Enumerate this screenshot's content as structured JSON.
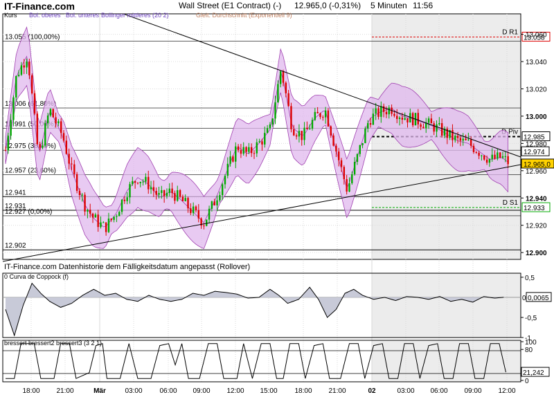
{
  "header": {
    "brand": "IT-Finance.com",
    "title": "Wall Street (E1 Contract) (-)",
    "quote": "12.965,0 (-0,31%)",
    "timeframe": "5 Minuten",
    "time": "11:56"
  },
  "colors": {
    "up": "#00aa00",
    "down": "#dd0000",
    "band_fill": "#e0b8ee",
    "band_line": "#a040b0",
    "ema": "#c08060",
    "session_shade": "#ececec",
    "r1": "#dd0000",
    "s1": "#00aa00",
    "last_price_bg": "#ffd200",
    "panel_fill": "#c8cad8"
  },
  "chart_data": [
    {
      "type": "candlestick",
      "panel": "price",
      "legend": [
        "Kurs",
        "Bol. oberes",
        "Bol. unteres",
        "Bollinger mittleres (20 2)",
        "Gleit. Durchschnitt (Exponentiell 9)"
      ],
      "note": "IT-Finance.com  Datenhistorie dem Fälligkeitsdatum angepasst (Rollover)",
      "ylim": [
        12.895,
        13.075
      ],
      "y_ticks": [
        "13.060",
        "13.040",
        "13.020",
        "13.000",
        "12.980",
        "12.960",
        "12.940",
        "12.920",
        "12.900"
      ],
      "x_ticks": [
        "18:00",
        "21:00",
        "Mär",
        "03:00",
        "06:00",
        "09:00",
        "12:00",
        "15:00",
        "18:00",
        "21:00",
        "02",
        "03:00",
        "06:00",
        "09:00",
        "12:00"
      ],
      "fib_levels": [
        {
          "label": "13.055 (100,00%)",
          "value": 13.055
        },
        {
          "label": "13.006 (61,80%)",
          "value": 13.006
        },
        {
          "label": "12.991 (50,00%)",
          "value": 12.991
        },
        {
          "label": "12.975 (38,20%)",
          "value": 12.975
        },
        {
          "label": "12.957 (23,60%)",
          "value": 12.957
        },
        {
          "label": "12.941",
          "value": 12.941
        },
        {
          "label": "12.931",
          "value": 12.931
        },
        {
          "label": "12.927 (0,00%)",
          "value": 12.927
        },
        {
          "label": "12.902",
          "value": 12.902
        }
      ],
      "pivots": [
        {
          "name": "D R1",
          "value": "13.058"
        },
        {
          "name": "D Piv",
          "value": "12.985"
        },
        {
          "name": "D S1",
          "value": "12.933"
        }
      ],
      "right_tags": [
        {
          "label": "12.974",
          "value": 12.974
        },
        {
          "label": "12.965,0",
          "value": 12.965
        }
      ],
      "path": [
        [
          0,
          12.975
        ],
        [
          0.5,
          13.03
        ],
        [
          1.0,
          13.045
        ],
        [
          1.5,
          12.97
        ],
        [
          2.0,
          13.005
        ],
        [
          2.6,
          12.985
        ],
        [
          3.0,
          12.96
        ],
        [
          3.6,
          12.935
        ],
        [
          4.0,
          12.925
        ],
        [
          4.5,
          12.918
        ],
        [
          5.0,
          12.928
        ],
        [
          5.5,
          12.945
        ],
        [
          6.0,
          12.955
        ],
        [
          6.5,
          12.95
        ],
        [
          7.0,
          12.94
        ],
        [
          7.5,
          12.945
        ],
        [
          8.0,
          12.938
        ],
        [
          8.5,
          12.93
        ],
        [
          9.0,
          12.922
        ],
        [
          9.5,
          12.938
        ],
        [
          10.0,
          12.958
        ],
        [
          10.5,
          12.978
        ],
        [
          11.0,
          12.972
        ],
        [
          11.5,
          12.98
        ],
        [
          12.0,
          12.99
        ],
        [
          12.5,
          13.035
        ],
        [
          13.0,
          12.992
        ],
        [
          13.5,
          12.985
        ],
        [
          14.0,
          12.998
        ],
        [
          14.5,
          13.005
        ],
        [
          15.0,
          12.975
        ],
        [
          15.5,
          12.946
        ],
        [
          16.0,
          12.972
        ],
        [
          16.5,
          12.998
        ],
        [
          17.0,
          13.003
        ],
        [
          17.5,
          13.006
        ],
        [
          18.0,
          13.0
        ],
        [
          18.5,
          12.998
        ],
        [
          19.0,
          12.995
        ],
        [
          19.5,
          12.992
        ],
        [
          20.0,
          12.987
        ],
        [
          20.5,
          12.982
        ],
        [
          21.0,
          12.98
        ],
        [
          21.5,
          12.974
        ],
        [
          22.0,
          12.968
        ],
        [
          22.5,
          12.97
        ],
        [
          22.9,
          12.965
        ]
      ]
    },
    {
      "type": "area",
      "panel": "coppock",
      "legend": "0 Curva de Coppock (f)",
      "ylim": [
        -1.0,
        0.6
      ],
      "y_ticks": [
        "0,5",
        "-0,5",
        "-1"
      ],
      "y_zero_label": "0",
      "last_value": "0,0065",
      "path": [
        [
          0,
          -0.3
        ],
        [
          0.4,
          -0.95
        ],
        [
          0.8,
          -0.2
        ],
        [
          1.2,
          0.35
        ],
        [
          1.6,
          0.1
        ],
        [
          2.0,
          -0.1
        ],
        [
          2.5,
          -0.25
        ],
        [
          3.0,
          -0.15
        ],
        [
          3.5,
          0.05
        ],
        [
          4.0,
          0.2
        ],
        [
          4.5,
          0.05
        ],
        [
          5.0,
          0.1
        ],
        [
          5.5,
          -0.05
        ],
        [
          6.0,
          -0.1
        ],
        [
          6.5,
          0.05
        ],
        [
          7.0,
          -0.05
        ],
        [
          7.5,
          -0.1
        ],
        [
          8.0,
          -0.05
        ],
        [
          8.5,
          0.1
        ],
        [
          9.0,
          0.05
        ],
        [
          9.5,
          0.15
        ],
        [
          10.0,
          0.12
        ],
        [
          10.5,
          0.08
        ],
        [
          11.0,
          -0.02
        ],
        [
          11.5,
          0.0
        ],
        [
          12.0,
          0.2
        ],
        [
          12.4,
          0.05
        ],
        [
          12.8,
          -0.15
        ],
        [
          13.3,
          -0.05
        ],
        [
          13.8,
          0.25
        ],
        [
          14.2,
          -0.05
        ],
        [
          14.6,
          -0.5
        ],
        [
          15.0,
          -0.3
        ],
        [
          15.4,
          0.1
        ],
        [
          15.8,
          0.2
        ],
        [
          16.2,
          0.05
        ],
        [
          16.7,
          -0.05
        ],
        [
          17.2,
          0.0
        ],
        [
          17.7,
          -0.08
        ],
        [
          18.2,
          0.02
        ],
        [
          18.7,
          0.0
        ],
        [
          19.2,
          -0.05
        ],
        [
          19.7,
          0.02
        ],
        [
          20.2,
          -0.1
        ],
        [
          20.7,
          -0.05
        ],
        [
          21.2,
          -0.12
        ],
        [
          21.7,
          0.02
        ],
        [
          22.2,
          -0.02
        ],
        [
          22.7,
          0.0065
        ]
      ]
    },
    {
      "type": "line",
      "panel": "bressert",
      "legend": "bressert bressert2 bressert3 (3 2 1)",
      "ylim": [
        0,
        100
      ],
      "y_ticks": [
        "100",
        "80",
        "0"
      ],
      "last_value": "21,242",
      "path": [
        [
          0,
          5
        ],
        [
          0.4,
          5
        ],
        [
          0.7,
          95
        ],
        [
          1.3,
          95
        ],
        [
          1.6,
          5
        ],
        [
          2.2,
          5
        ],
        [
          2.5,
          95
        ],
        [
          2.9,
          95
        ],
        [
          3.2,
          5
        ],
        [
          3.8,
          20
        ],
        [
          4.1,
          90
        ],
        [
          4.4,
          95
        ],
        [
          4.6,
          5
        ],
        [
          5.2,
          5
        ],
        [
          5.6,
          95
        ],
        [
          6.0,
          5
        ],
        [
          6.6,
          5
        ],
        [
          7.0,
          90
        ],
        [
          7.4,
          95
        ],
        [
          7.7,
          40
        ],
        [
          8.0,
          95
        ],
        [
          8.3,
          5
        ],
        [
          8.8,
          5
        ],
        [
          9.2,
          95
        ],
        [
          9.6,
          95
        ],
        [
          9.9,
          5
        ],
        [
          10.5,
          5
        ],
        [
          10.8,
          95
        ],
        [
          11.2,
          5
        ],
        [
          11.6,
          95
        ],
        [
          12.0,
          95
        ],
        [
          12.3,
          5
        ],
        [
          12.6,
          5
        ],
        [
          12.9,
          95
        ],
        [
          13.3,
          95
        ],
        [
          13.6,
          5
        ],
        [
          14.0,
          90
        ],
        [
          14.4,
          95
        ],
        [
          14.7,
          5
        ],
        [
          15.2,
          5
        ],
        [
          15.6,
          95
        ],
        [
          16.0,
          95
        ],
        [
          16.3,
          5
        ],
        [
          16.7,
          90
        ],
        [
          17.1,
          95
        ],
        [
          17.4,
          5
        ],
        [
          17.8,
          5
        ],
        [
          18.1,
          95
        ],
        [
          18.5,
          95
        ],
        [
          18.8,
          5
        ],
        [
          19.2,
          90
        ],
        [
          19.6,
          95
        ],
        [
          19.9,
          5
        ],
        [
          20.3,
          5
        ],
        [
          20.6,
          95
        ],
        [
          21.0,
          95
        ],
        [
          21.3,
          5
        ],
        [
          21.7,
          5
        ],
        [
          22.0,
          95
        ],
        [
          22.4,
          95
        ],
        [
          22.7,
          21.242
        ]
      ]
    }
  ]
}
